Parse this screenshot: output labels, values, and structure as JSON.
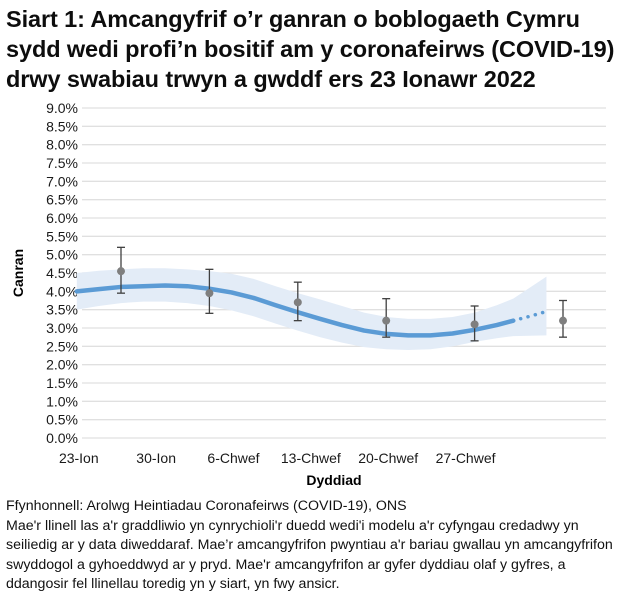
{
  "title": "Siart 1: Amcangyfrif o’r ganran o boblogaeth Cymru sydd wedi profi’n bositif am y coronafeirws (COVID-19) drwy swabiau trwyn a gwddf ers 23 Ionawr 2022",
  "footer": {
    "source": "Ffynhonnell: Arolwg Heintiadau Coronafeirws (COVID-19), ONS",
    "note": "Mae'r llinell las a'r graddliwio yn cynrychioli'r duedd wedi'i modelu a'r cyfyngau credadwy yn seiliedig ar y data diweddaraf. Mae’r amcangyfrifon pwyntiau a'r bariau gwallau yn amcangyfrifon swyddogol a gyhoeddwyd ar y pryd. Mae'r amcangyfrifon ar gyfer dyddiau olaf y gyfres, a ddangosir fel llinellau toredig yn y siart, yn fwy ansicr."
  },
  "colors": {
    "trend_line": "#5b9bd5",
    "band": "#e3ecf7",
    "point": "#7f7f7f",
    "error_bar": "#404040",
    "grid": "#e0e0e0"
  },
  "chart_data": {
    "type": "line",
    "title": "Siart 1: Amcangyfrif o’r ganran o boblogaeth Cymru sydd wedi profi’n bositif am y coronafeirws (COVID-19) drwy swabiau trwyn a gwddf ers 23 Ionawr 2022",
    "xlabel": "Dyddiad",
    "ylabel": "Canran",
    "ylim": [
      0,
      9
    ],
    "yticks": [
      "0.0%",
      "0.5%",
      "1.0%",
      "1.5%",
      "2.0%",
      "2.5%",
      "3.0%",
      "3.5%",
      "4.0%",
      "4.5%",
      "5.0%",
      "5.5%",
      "6.0%",
      "6.5%",
      "7.0%",
      "7.5%",
      "8.0%",
      "8.5%",
      "9.0%"
    ],
    "xticks": [
      "23-Ion",
      "30-Ion",
      "6-Chwef",
      "13-Chwef",
      "20-Chwef",
      "27-Chwef"
    ],
    "grid": true,
    "legend": "none",
    "x_range_days": [
      0,
      43
    ],
    "modelled_trend": {
      "name": "Modelled trend",
      "day": [
        0,
        2,
        4,
        6,
        8,
        10,
        12,
        14,
        16,
        18,
        20,
        22,
        24,
        26,
        28,
        30,
        32,
        34,
        36,
        38,
        39.5
      ],
      "value": [
        4.0,
        4.06,
        4.12,
        4.14,
        4.16,
        4.14,
        4.07,
        3.97,
        3.82,
        3.62,
        3.43,
        3.25,
        3.08,
        2.93,
        2.84,
        2.8,
        2.8,
        2.85,
        2.95,
        3.08,
        3.2
      ],
      "lower": [
        3.5,
        3.6,
        3.68,
        3.72,
        3.72,
        3.68,
        3.6,
        3.48,
        3.32,
        3.12,
        2.93,
        2.75,
        2.6,
        2.48,
        2.42,
        2.4,
        2.42,
        2.5,
        2.62,
        2.72,
        2.78
      ],
      "upper": [
        4.5,
        4.56,
        4.6,
        4.63,
        4.63,
        4.6,
        4.55,
        4.48,
        4.34,
        4.14,
        3.95,
        3.78,
        3.6,
        3.42,
        3.3,
        3.25,
        3.25,
        3.3,
        3.42,
        3.62,
        3.8
      ]
    },
    "uncertain_tail": {
      "name": "Modelled trend (uncertain)",
      "day": [
        39.5,
        41,
        42.5
      ],
      "value": [
        3.2,
        3.32,
        3.45
      ],
      "lower": [
        2.78,
        2.79,
        2.8
      ],
      "upper": [
        3.8,
        4.1,
        4.4
      ]
    },
    "official_estimates": {
      "name": "Official estimates",
      "day": [
        4,
        12,
        20,
        28,
        36,
        44
      ],
      "value": [
        4.55,
        3.95,
        3.7,
        3.2,
        3.1,
        3.2
      ],
      "lower": [
        3.95,
        3.4,
        3.2,
        2.75,
        2.65,
        2.75
      ],
      "upper": [
        5.2,
        4.6,
        4.25,
        3.8,
        3.6,
        3.75
      ]
    }
  }
}
